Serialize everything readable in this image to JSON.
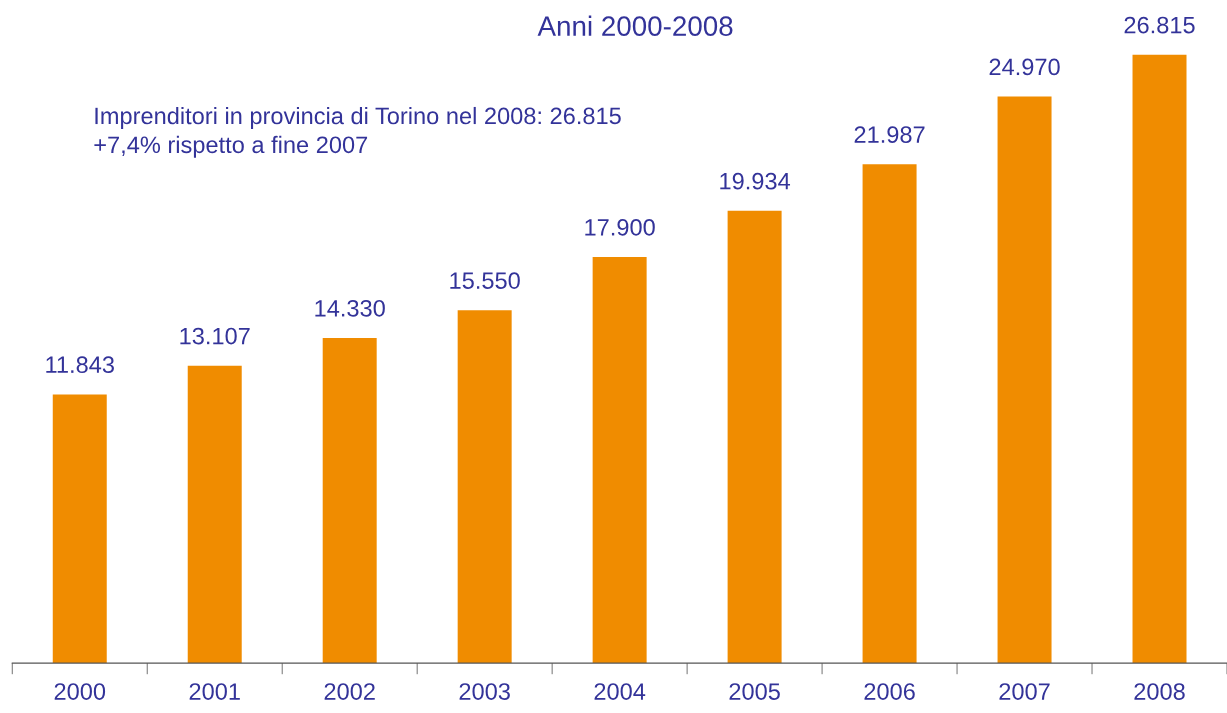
{
  "chart_data": {
    "type": "bar",
    "title": "Anni 2000-2008",
    "categories": [
      "2000",
      "2001",
      "2002",
      "2003",
      "2004",
      "2005",
      "2006",
      "2007",
      "2008"
    ],
    "values": [
      11843,
      13107,
      14330,
      15550,
      17900,
      19934,
      21987,
      24970,
      26815
    ],
    "value_labels": [
      "11.843",
      "13.107",
      "14.330",
      "15.550",
      "17.900",
      "19.934",
      "21.987",
      "24.970",
      "26.815"
    ],
    "color": "#f08c00",
    "tick_labels": "x",
    "grid": false,
    "annotations": [
      "Imprenditori in provincia di Torino nel 2008: 26.815\n+7,4% rispetto a fine 2007"
    ]
  }
}
